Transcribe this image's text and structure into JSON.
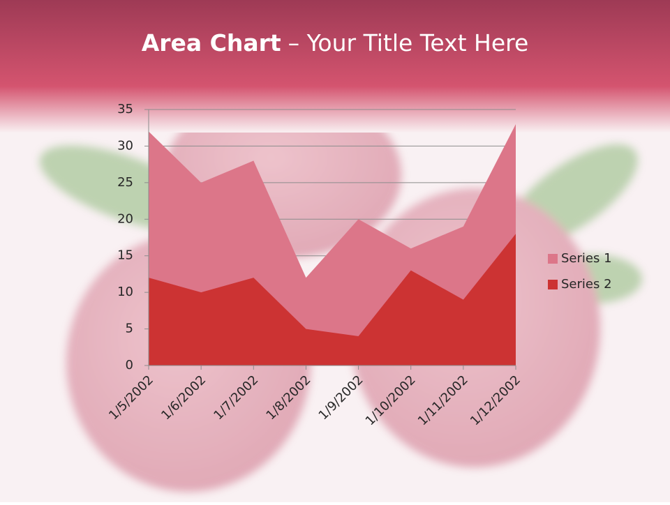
{
  "chart_data": {
    "type": "area",
    "title": "Area Chart",
    "subtitle": "– Your Title Text Here",
    "categories": [
      "1/5/2002",
      "1/6/2002",
      "1/7/2002",
      "1/8/2002",
      "1/9/2002",
      "1/10/2002",
      "1/11/2002",
      "1/12/2002"
    ],
    "series": [
      {
        "name": "Series 1",
        "color": "#dc7689",
        "values": [
          32,
          25,
          28,
          12,
          20,
          16,
          19,
          33
        ]
      },
      {
        "name": "Series 2",
        "color": "#cc3333",
        "values": [
          12,
          10,
          12,
          5,
          4,
          13,
          9,
          18
        ]
      }
    ],
    "ylim": [
      0,
      35
    ],
    "yticks": [
      0,
      5,
      10,
      15,
      20,
      25,
      30,
      35
    ],
    "grid": true,
    "legend": "right"
  }
}
